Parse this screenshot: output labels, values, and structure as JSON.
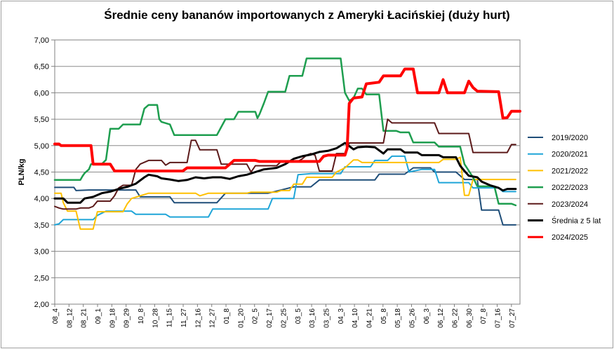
{
  "chart_data": {
    "type": "line",
    "title": "Średnie ceny bananów importowanych z Ameryki Łacińskiej (duży hurt)",
    "ylabel": "PLN/kg",
    "xlabel": "",
    "ylim": [
      2.0,
      7.0
    ],
    "ytick_labels": [
      "2,00",
      "2,50",
      "3,00",
      "3,50",
      "4,00",
      "4,50",
      "5,00",
      "5,50",
      "6,00",
      "6,50",
      "7,00"
    ],
    "grid": true,
    "legend_position": "right",
    "x_tick_labels": [
      "08_4",
      "08_12",
      "08_21",
      "09_1",
      "09_18",
      "09_29",
      "10_8",
      "10_28",
      "11_15",
      "11_27",
      "12_16",
      "12_27",
      "01_8",
      "01_20",
      "02_5",
      "02_17",
      "02_25",
      "03_5",
      "03_16",
      "03_25",
      "04_3",
      "04_10",
      "04_21",
      "05_8",
      "05_18",
      "05_26",
      "06_3",
      "06_12",
      "06_22",
      "06_30",
      "07_8",
      "07_16",
      "07_27"
    ],
    "series": [
      {
        "name": "2019/2020",
        "color": "#1f4e79",
        "width": 2,
        "points": [
          [
            0,
            4.21
          ],
          [
            4.5,
            4.21
          ],
          [
            5,
            4.15
          ],
          [
            8,
            4.16
          ],
          [
            19,
            4.16
          ],
          [
            20,
            4.03
          ],
          [
            27,
            4.03
          ],
          [
            28,
            3.92
          ],
          [
            38,
            3.92
          ],
          [
            40,
            4.1
          ],
          [
            50,
            4.1
          ],
          [
            51,
            4.12
          ],
          [
            56,
            4.22
          ],
          [
            60,
            4.22
          ],
          [
            62,
            4.35
          ],
          [
            75,
            4.35
          ],
          [
            76,
            4.46
          ],
          [
            82,
            4.46
          ],
          [
            84,
            4.58
          ],
          [
            88,
            4.58
          ],
          [
            89,
            4.5
          ],
          [
            94,
            4.5
          ],
          [
            96,
            4.36
          ],
          [
            99,
            4.36
          ],
          [
            100,
            3.78
          ],
          [
            104,
            3.78
          ],
          [
            105,
            3.5
          ],
          [
            108,
            3.5
          ]
        ]
      },
      {
        "name": "2020/2021",
        "color": "#1fa5d8",
        "width": 2,
        "points": [
          [
            0,
            3.5
          ],
          [
            1,
            3.52
          ],
          [
            2,
            3.6
          ],
          [
            9,
            3.6
          ],
          [
            10,
            3.68
          ],
          [
            12,
            3.76
          ],
          [
            18,
            3.76
          ],
          [
            19,
            3.7
          ],
          [
            26,
            3.7
          ],
          [
            27,
            3.65
          ],
          [
            36,
            3.65
          ],
          [
            37,
            3.8
          ],
          [
            50,
            3.8
          ],
          [
            51,
            4.0
          ],
          [
            56,
            4.0
          ],
          [
            57,
            4.45
          ],
          [
            60,
            4.47
          ],
          [
            67,
            4.47
          ],
          [
            68,
            4.6
          ],
          [
            74,
            4.6
          ],
          [
            75,
            4.72
          ],
          [
            78,
            4.72
          ],
          [
            79,
            4.8
          ],
          [
            82,
            4.8
          ],
          [
            83,
            4.5
          ],
          [
            86,
            4.55
          ],
          [
            89,
            4.55
          ],
          [
            90,
            4.3
          ],
          [
            97,
            4.3
          ],
          [
            98,
            4.2
          ],
          [
            104,
            4.2
          ],
          [
            105,
            4.13
          ],
          [
            108,
            4.13
          ]
        ]
      },
      {
        "name": "2021/2022",
        "color": "#ffc000",
        "width": 2,
        "points": [
          [
            0,
            4.1
          ],
          [
            1.5,
            4.1
          ],
          [
            2,
            3.92
          ],
          [
            3,
            3.76
          ],
          [
            5,
            3.76
          ],
          [
            6,
            3.42
          ],
          [
            9,
            3.42
          ],
          [
            10,
            3.75
          ],
          [
            16,
            3.75
          ],
          [
            17,
            3.9
          ],
          [
            18,
            4.0
          ],
          [
            20,
            4.05
          ],
          [
            22,
            4.1
          ],
          [
            33,
            4.1
          ],
          [
            34,
            4.05
          ],
          [
            36,
            4.1
          ],
          [
            45,
            4.1
          ],
          [
            46,
            4.12
          ],
          [
            52,
            4.12
          ],
          [
            53,
            4.15
          ],
          [
            55,
            4.15
          ],
          [
            56,
            4.27
          ],
          [
            58,
            4.27
          ],
          [
            59,
            4.4
          ],
          [
            65,
            4.4
          ],
          [
            66,
            4.5
          ],
          [
            68,
            4.58
          ],
          [
            70,
            4.73
          ],
          [
            71,
            4.73
          ],
          [
            72,
            4.68
          ],
          [
            90,
            4.68
          ],
          [
            91,
            4.74
          ],
          [
            94,
            4.74
          ],
          [
            95,
            4.78
          ],
          [
            96,
            4.06
          ],
          [
            97,
            4.06
          ],
          [
            98,
            4.36
          ],
          [
            108,
            4.36
          ]
        ]
      },
      {
        "name": "2022/2023",
        "color": "#1e9e4f",
        "width": 2.5,
        "points": [
          [
            0,
            4.35
          ],
          [
            6,
            4.35
          ],
          [
            6.5,
            4.42
          ],
          [
            7,
            4.48
          ],
          [
            8,
            4.55
          ],
          [
            8.5,
            4.65
          ],
          [
            11,
            4.65
          ],
          [
            12,
            4.73
          ],
          [
            13,
            5.32
          ],
          [
            15,
            5.32
          ],
          [
            16,
            5.4
          ],
          [
            20,
            5.4
          ],
          [
            21,
            5.7
          ],
          [
            22,
            5.77
          ],
          [
            24,
            5.77
          ],
          [
            24.5,
            5.5
          ],
          [
            25,
            5.45
          ],
          [
            27,
            5.4
          ],
          [
            28,
            5.2
          ],
          [
            38,
            5.2
          ],
          [
            39,
            5.35
          ],
          [
            40,
            5.5
          ],
          [
            42,
            5.5
          ],
          [
            43,
            5.64
          ],
          [
            47,
            5.64
          ],
          [
            47.5,
            5.52
          ],
          [
            48,
            5.6
          ],
          [
            49,
            5.8
          ],
          [
            50,
            6.02
          ],
          [
            54,
            6.02
          ],
          [
            55,
            6.32
          ],
          [
            58,
            6.32
          ],
          [
            59,
            6.65
          ],
          [
            67,
            6.65
          ],
          [
            68,
            6.0
          ],
          [
            69,
            5.85
          ],
          [
            70,
            5.9
          ],
          [
            71,
            6.08
          ],
          [
            72,
            6.08
          ],
          [
            73,
            5.97
          ],
          [
            76,
            5.97
          ],
          [
            77,
            5.28
          ],
          [
            80,
            5.28
          ],
          [
            81,
            5.25
          ],
          [
            83,
            5.25
          ],
          [
            84,
            5.06
          ],
          [
            89,
            5.06
          ],
          [
            90,
            4.98
          ],
          [
            95,
            4.98
          ],
          [
            96,
            4.65
          ],
          [
            98,
            4.4
          ],
          [
            99,
            4.23
          ],
          [
            103,
            4.23
          ],
          [
            104,
            3.9
          ],
          [
            107,
            3.9
          ],
          [
            108,
            3.87
          ]
        ]
      },
      {
        "name": "2023/2024",
        "color": "#5c1a1a",
        "width": 2,
        "points": [
          [
            0,
            3.85
          ],
          [
            1,
            3.82
          ],
          [
            2,
            3.8
          ],
          [
            5,
            3.8
          ],
          [
            6,
            3.82
          ],
          [
            8,
            3.82
          ],
          [
            9,
            3.85
          ],
          [
            10,
            3.95
          ],
          [
            13,
            3.95
          ],
          [
            14,
            4.05
          ],
          [
            15,
            4.2
          ],
          [
            16,
            4.25
          ],
          [
            18,
            4.25
          ],
          [
            19,
            4.55
          ],
          [
            20,
            4.65
          ],
          [
            22,
            4.72
          ],
          [
            25,
            4.72
          ],
          [
            26,
            4.63
          ],
          [
            27,
            4.68
          ],
          [
            31,
            4.68
          ],
          [
            32,
            5.1
          ],
          [
            33,
            5.1
          ],
          [
            34,
            4.92
          ],
          [
            38,
            4.92
          ],
          [
            39,
            4.65
          ],
          [
            45,
            4.65
          ],
          [
            46,
            4.5
          ],
          [
            47,
            4.62
          ],
          [
            52,
            4.62
          ],
          [
            53,
            4.7
          ],
          [
            57,
            4.7
          ],
          [
            58,
            4.75
          ],
          [
            59,
            4.82
          ],
          [
            60,
            4.85
          ],
          [
            61,
            4.82
          ],
          [
            62,
            4.52
          ],
          [
            65,
            4.52
          ],
          [
            66,
            4.85
          ],
          [
            68,
            4.85
          ],
          [
            69,
            5.05
          ],
          [
            73,
            5.05
          ],
          [
            74,
            5.05
          ],
          [
            75,
            5.05
          ],
          [
            77,
            5.05
          ],
          [
            78,
            5.5
          ],
          [
            79,
            5.43
          ],
          [
            89,
            5.43
          ],
          [
            90,
            5.23
          ],
          [
            97,
            5.23
          ],
          [
            98,
            4.87
          ],
          [
            106,
            4.87
          ],
          [
            107,
            5.02
          ],
          [
            108,
            5.02
          ]
        ]
      },
      {
        "name": "Średnia z 5 lat",
        "color": "#000000",
        "width": 3,
        "points": [
          [
            0,
            4.0
          ],
          [
            2,
            4.0
          ],
          [
            3,
            3.92
          ],
          [
            6,
            3.92
          ],
          [
            7,
            4.0
          ],
          [
            9,
            4.03
          ],
          [
            11,
            4.1
          ],
          [
            13,
            4.13
          ],
          [
            15,
            4.18
          ],
          [
            17,
            4.22
          ],
          [
            19,
            4.28
          ],
          [
            21,
            4.4
          ],
          [
            22,
            4.45
          ],
          [
            24,
            4.42
          ],
          [
            25,
            4.38
          ],
          [
            27,
            4.36
          ],
          [
            29,
            4.33
          ],
          [
            31,
            4.35
          ],
          [
            33,
            4.4
          ],
          [
            35,
            4.38
          ],
          [
            37,
            4.4
          ],
          [
            39,
            4.4
          ],
          [
            41,
            4.37
          ],
          [
            43,
            4.42
          ],
          [
            45,
            4.45
          ],
          [
            47,
            4.5
          ],
          [
            49,
            4.55
          ],
          [
            52,
            4.58
          ],
          [
            54,
            4.65
          ],
          [
            56,
            4.75
          ],
          [
            58,
            4.8
          ],
          [
            60,
            4.83
          ],
          [
            62,
            4.88
          ],
          [
            64,
            4.9
          ],
          [
            66,
            4.95
          ],
          [
            68,
            5.05
          ],
          [
            70,
            4.93
          ],
          [
            71,
            4.97
          ],
          [
            73,
            4.98
          ],
          [
            75,
            4.97
          ],
          [
            77,
            4.85
          ],
          [
            78,
            4.93
          ],
          [
            81,
            4.93
          ],
          [
            82,
            4.87
          ],
          [
            85,
            4.87
          ],
          [
            86,
            4.82
          ],
          [
            90,
            4.82
          ],
          [
            91,
            4.78
          ],
          [
            94,
            4.78
          ],
          [
            95,
            4.62
          ],
          [
            96,
            4.52
          ],
          [
            97,
            4.43
          ],
          [
            99,
            4.4
          ],
          [
            100,
            4.32
          ],
          [
            102,
            4.25
          ],
          [
            104,
            4.2
          ],
          [
            105,
            4.15
          ],
          [
            106,
            4.18
          ],
          [
            108,
            4.18
          ]
        ]
      },
      {
        "name": "2024/2025",
        "color": "#ff0000",
        "width": 4,
        "points": [
          [
            0,
            5.03
          ],
          [
            1,
            5.03
          ],
          [
            1.5,
            5.0
          ],
          [
            8.5,
            5.0
          ],
          [
            9,
            4.65
          ],
          [
            13,
            4.65
          ],
          [
            14,
            4.52
          ],
          [
            30,
            4.52
          ],
          [
            31,
            4.58
          ],
          [
            40,
            4.58
          ],
          [
            41,
            4.65
          ],
          [
            42,
            4.72
          ],
          [
            47,
            4.72
          ],
          [
            48,
            4.7
          ],
          [
            62,
            4.7
          ],
          [
            63,
            4.8
          ],
          [
            64,
            4.82
          ],
          [
            68,
            4.82
          ],
          [
            68.5,
            4.95
          ],
          [
            69,
            5.8
          ],
          [
            70,
            5.9
          ],
          [
            72,
            5.92
          ],
          [
            73,
            6.17
          ],
          [
            76,
            6.2
          ],
          [
            77,
            6.32
          ],
          [
            81,
            6.32
          ],
          [
            82,
            6.45
          ],
          [
            84,
            6.45
          ],
          [
            85,
            6.0
          ],
          [
            90,
            6.0
          ],
          [
            91,
            6.25
          ],
          [
            92,
            6.0
          ],
          [
            96,
            6.0
          ],
          [
            97,
            6.22
          ],
          [
            98,
            6.1
          ],
          [
            99,
            6.03
          ],
          [
            104,
            6.02
          ],
          [
            105,
            5.52
          ],
          [
            106,
            5.53
          ],
          [
            107,
            5.65
          ],
          [
            109,
            5.65
          ]
        ]
      }
    ]
  }
}
